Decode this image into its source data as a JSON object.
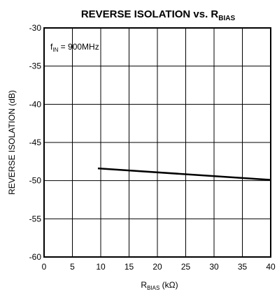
{
  "chart_data": {
    "type": "line",
    "title": {
      "main": "REVERSE ISOLATION vs. R",
      "subscript": "BIAS"
    },
    "xlabel": {
      "main": "R",
      "subscript": "BIAS",
      "unit": " (kΩ)"
    },
    "ylabel": "REVERSE ISOLATION (dB)",
    "annotation": {
      "prefix": "f",
      "subscript": "IN",
      "suffix": " = 900MHz"
    },
    "xlim": [
      0,
      40
    ],
    "ylim": [
      -60,
      -30
    ],
    "xticks": [
      0,
      5,
      10,
      15,
      20,
      25,
      30,
      35,
      40
    ],
    "yticks": [
      -30,
      -35,
      -40,
      -45,
      -50,
      -55,
      -60
    ],
    "grid": true,
    "series": [
      {
        "x": [
          9.5,
          40
        ],
        "y": [
          -48.4,
          -49.9
        ]
      }
    ],
    "colors": {
      "line": "#000000",
      "grid": "#000000",
      "background": "#ffffff"
    }
  }
}
